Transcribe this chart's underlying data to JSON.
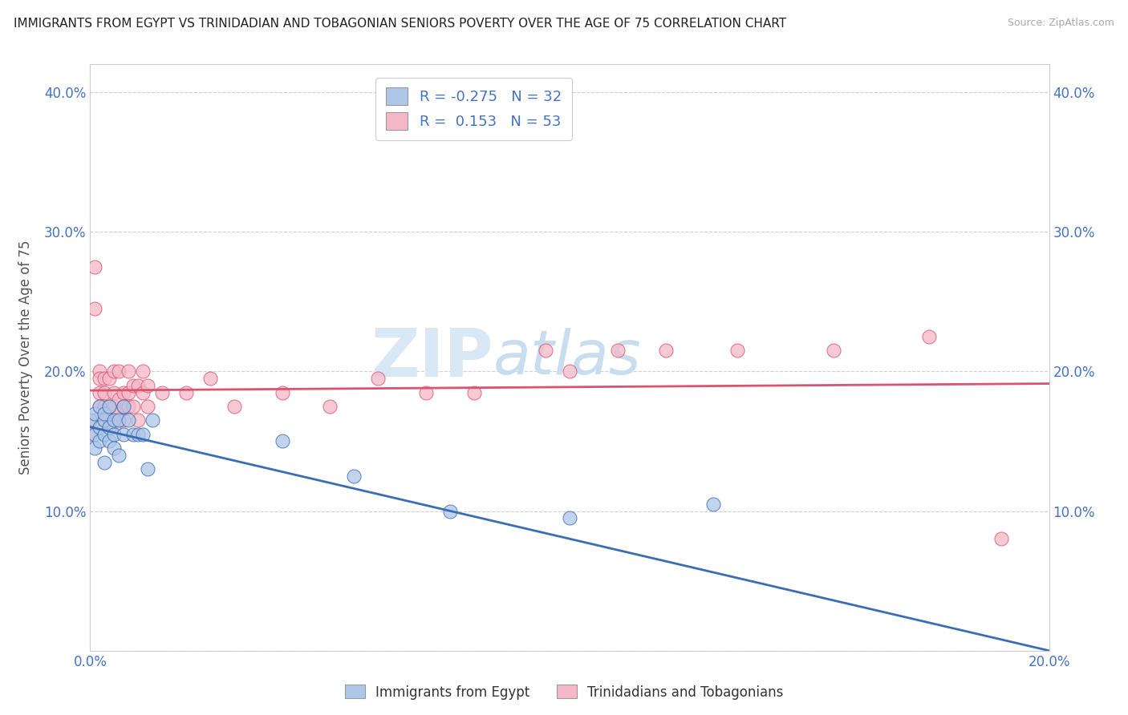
{
  "title": "IMMIGRANTS FROM EGYPT VS TRINIDADIAN AND TOBAGONIAN SENIORS POVERTY OVER THE AGE OF 75 CORRELATION CHART",
  "source": "Source: ZipAtlas.com",
  "ylabel": "Seniors Poverty Over the Age of 75",
  "legend_label1": "Immigrants from Egypt",
  "legend_label2": "Trinidadians and Tobagonians",
  "R1": -0.275,
  "N1": 32,
  "R2": 0.153,
  "N2": 53,
  "color_egypt": "#aec6e8",
  "color_tnt": "#f4b8c8",
  "color_egypt_line": "#3a6db5",
  "color_tnt_line": "#d9546e",
  "color_watermark": "#d0e4f5",
  "background_color": "#ffffff",
  "axis_label_color": "#4472c4",
  "xlim": [
    0.0,
    0.2
  ],
  "ylim": [
    0.0,
    0.42
  ],
  "egypt_x": [
    0.0,
    0.001,
    0.001,
    0.001,
    0.002,
    0.002,
    0.002,
    0.003,
    0.003,
    0.003,
    0.003,
    0.004,
    0.004,
    0.004,
    0.005,
    0.005,
    0.005,
    0.006,
    0.006,
    0.007,
    0.007,
    0.008,
    0.009,
    0.01,
    0.011,
    0.012,
    0.013,
    0.04,
    0.055,
    0.075,
    0.1,
    0.13
  ],
  "egypt_y": [
    0.165,
    0.155,
    0.145,
    0.17,
    0.15,
    0.175,
    0.16,
    0.165,
    0.135,
    0.155,
    0.17,
    0.15,
    0.175,
    0.16,
    0.155,
    0.165,
    0.145,
    0.165,
    0.14,
    0.175,
    0.155,
    0.165,
    0.155,
    0.155,
    0.155,
    0.13,
    0.165,
    0.15,
    0.125,
    0.1,
    0.095,
    0.105
  ],
  "tnt_x": [
    0.0,
    0.001,
    0.001,
    0.001,
    0.002,
    0.002,
    0.002,
    0.002,
    0.003,
    0.003,
    0.003,
    0.003,
    0.004,
    0.004,
    0.004,
    0.005,
    0.005,
    0.005,
    0.005,
    0.006,
    0.006,
    0.006,
    0.007,
    0.007,
    0.007,
    0.008,
    0.008,
    0.008,
    0.009,
    0.009,
    0.01,
    0.01,
    0.011,
    0.011,
    0.012,
    0.012,
    0.015,
    0.02,
    0.025,
    0.03,
    0.04,
    0.05,
    0.06,
    0.07,
    0.08,
    0.095,
    0.1,
    0.11,
    0.12,
    0.135,
    0.155,
    0.175,
    0.19
  ],
  "tnt_y": [
    0.155,
    0.275,
    0.245,
    0.165,
    0.2,
    0.185,
    0.175,
    0.195,
    0.165,
    0.185,
    0.175,
    0.195,
    0.175,
    0.195,
    0.165,
    0.185,
    0.2,
    0.175,
    0.16,
    0.18,
    0.2,
    0.17,
    0.185,
    0.165,
    0.175,
    0.185,
    0.2,
    0.175,
    0.19,
    0.175,
    0.19,
    0.165,
    0.185,
    0.2,
    0.175,
    0.19,
    0.185,
    0.185,
    0.195,
    0.175,
    0.185,
    0.175,
    0.195,
    0.185,
    0.185,
    0.215,
    0.2,
    0.215,
    0.215,
    0.215,
    0.215,
    0.225,
    0.08
  ]
}
